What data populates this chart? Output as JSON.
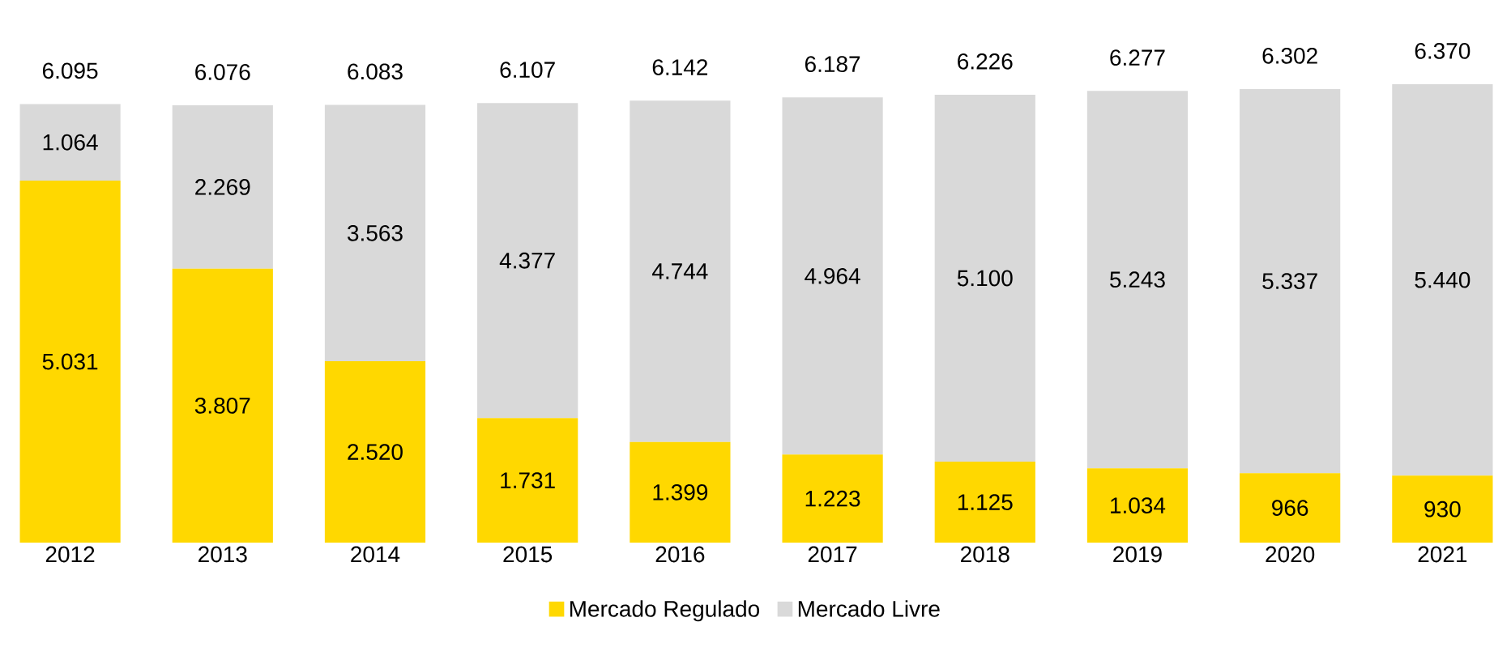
{
  "chart_data": {
    "type": "bar",
    "stacked": true,
    "legend": "bottom",
    "categories": [
      "2012",
      "2013",
      "2014",
      "2015",
      "2016",
      "2017",
      "2018",
      "2019",
      "2020",
      "2021"
    ],
    "series": [
      {
        "name": "Mercado Regulado",
        "color": "#ffd800",
        "values": [
          5031,
          3807,
          2520,
          1731,
          1399,
          1223,
          1125,
          1034,
          966,
          930
        ],
        "value_labels": [
          "5.031",
          "3.807",
          "2.520",
          "1.731",
          "1.399",
          "1.223",
          "1.125",
          "1.034",
          "966",
          "930"
        ]
      },
      {
        "name": "Mercado Livre",
        "color": "#d9d9d9",
        "values": [
          1064,
          2269,
          3563,
          4377,
          4744,
          4964,
          5100,
          5243,
          5337,
          5440
        ],
        "value_labels": [
          "1.064",
          "2.269",
          "3.563",
          "4.377",
          "4.744",
          "4.964",
          "5.100",
          "5.243",
          "5.337",
          "5.440"
        ]
      }
    ],
    "totals": [
      "6.095",
      "6.076",
      "6.083",
      "6.107",
      "6.142",
      "6.187",
      "6.226",
      "6.277",
      "6.302",
      "6.370"
    ]
  }
}
